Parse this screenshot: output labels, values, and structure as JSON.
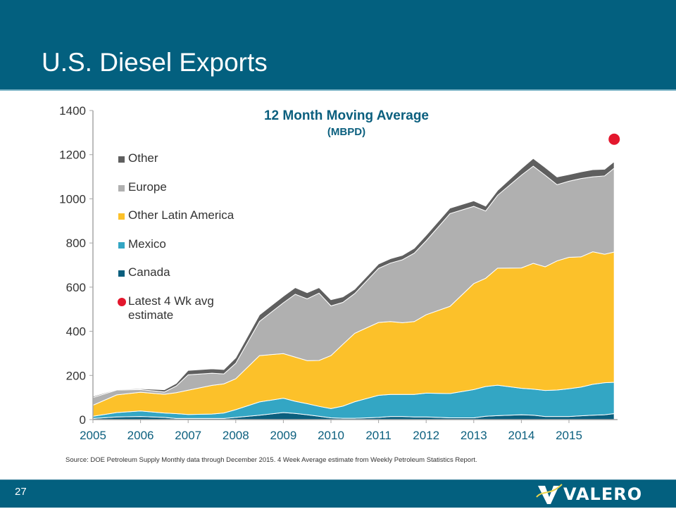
{
  "slide": {
    "title": "U.S. Diesel Exports",
    "page_number": "27",
    "source": "Source:  DOE Petroleum Supply Monthly data through December 2015.  4 Week Average estimate from Weekly Petroleum Statistics Report.",
    "logo_text": "VALERO",
    "colors": {
      "header": "#03607f",
      "title_text": "#ffffff"
    }
  },
  "chart_data": {
    "type": "area",
    "stacked": true,
    "title": "12 Month Moving Average",
    "subtitle": "(MBPD)",
    "xlabel": "",
    "ylabel": "",
    "xlim": [
      2005,
      2015.95
    ],
    "ylim": [
      0,
      1400
    ],
    "yticks": [
      0,
      200,
      400,
      600,
      800,
      1000,
      1200,
      1400
    ],
    "xticks": [
      "2005",
      "2006",
      "2007",
      "2008",
      "2009",
      "2010",
      "2011",
      "2012",
      "2013",
      "2014",
      "2015"
    ],
    "grid": false,
    "legend_position": "top-left",
    "x": [
      2005.0,
      2005.5,
      2006.0,
      2006.5,
      2006.75,
      2007.0,
      2007.5,
      2007.75,
      2008.0,
      2008.5,
      2009.0,
      2009.25,
      2009.5,
      2009.75,
      2010.0,
      2010.25,
      2010.5,
      2011.0,
      2011.25,
      2011.5,
      2011.75,
      2012.0,
      2012.5,
      2013.0,
      2013.25,
      2013.5,
      2014.0,
      2014.25,
      2014.5,
      2014.75,
      2015.0,
      2015.25,
      2015.5,
      2015.75,
      2015.95
    ],
    "series": [
      {
        "name": "Canada",
        "color": "#0b5f7e",
        "values": [
          5,
          12,
          14,
          10,
          5,
          5,
          5,
          5,
          10,
          20,
          32,
          28,
          22,
          15,
          8,
          6,
          6,
          10,
          14,
          14,
          12,
          12,
          8,
          8,
          15,
          18,
          22,
          20,
          14,
          14,
          14,
          17,
          20,
          22,
          27
        ]
      },
      {
        "name": "Mexico",
        "color": "#33a6c4",
        "values": [
          10,
          20,
          25,
          20,
          22,
          18,
          20,
          25,
          35,
          60,
          65,
          55,
          50,
          45,
          42,
          55,
          75,
          100,
          100,
          100,
          102,
          108,
          110,
          128,
          135,
          138,
          120,
          118,
          118,
          120,
          126,
          130,
          140,
          145,
          142
        ]
      },
      {
        "name": "Other Latin America",
        "color": "#fcc12a",
        "values": [
          50,
          80,
          85,
          85,
          95,
          110,
          130,
          132,
          140,
          210,
          202,
          200,
          195,
          208,
          240,
          280,
          310,
          330,
          330,
          325,
          330,
          355,
          395,
          480,
          490,
          530,
          545,
          570,
          560,
          585,
          595,
          590,
          600,
          582,
          590
        ]
      },
      {
        "name": "Europe",
        "color": "#b0b0b0",
        "values": [
          35,
          22,
          12,
          10,
          30,
          70,
          55,
          45,
          70,
          155,
          230,
          285,
          280,
          305,
          225,
          190,
          180,
          245,
          265,
          285,
          310,
          335,
          420,
          350,
          305,
          330,
          420,
          440,
          415,
          345,
          345,
          355,
          340,
          355,
          380
        ]
      },
      {
        "name": "Other",
        "color": "#5f5f5f",
        "values": [
          5,
          3,
          4,
          10,
          12,
          20,
          20,
          20,
          25,
          30,
          30,
          30,
          28,
          25,
          28,
          25,
          20,
          20,
          20,
          20,
          22,
          25,
          25,
          25,
          22,
          22,
          30,
          35,
          35,
          35,
          30,
          30,
          32,
          30,
          30
        ]
      }
    ],
    "markers": [
      {
        "name": "Latest 4 Wk avg estimate",
        "x": 2015.95,
        "y": 1270,
        "color": "#e3172d"
      }
    ],
    "legend": [
      "Other",
      "Europe",
      "Other Latin America",
      "Mexico",
      "Canada",
      "Latest 4 Wk avg estimate"
    ]
  }
}
